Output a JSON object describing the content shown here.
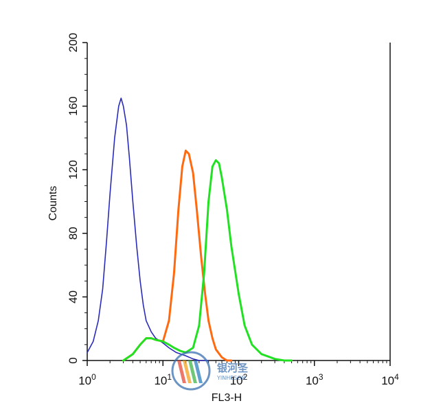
{
  "chart_data": {
    "type": "line",
    "title": "",
    "xlabel": "FL3-H",
    "ylabel": "Counts",
    "xscale": "log",
    "xlim": [
      1,
      10000
    ],
    "ylim": [
      0,
      200
    ],
    "x_ticks": [
      {
        "value": 1,
        "base": "10",
        "exp": "0"
      },
      {
        "value": 10,
        "base": "10",
        "exp": "1"
      },
      {
        "value": 100,
        "base": "10",
        "exp": "2"
      },
      {
        "value": 1000,
        "base": "10",
        "exp": "3"
      },
      {
        "value": 10000,
        "base": "10",
        "exp": "4"
      }
    ],
    "y_ticks": [
      "0",
      "40",
      "80",
      "120",
      "160",
      "200"
    ],
    "grid": false,
    "series": [
      {
        "color": "#2a2ab8",
        "x": [
          1,
          1.2,
          1.4,
          1.6,
          1.8,
          2,
          2.3,
          2.6,
          2.8,
          3,
          3.3,
          3.6,
          4,
          4.5,
          5,
          5.5,
          6,
          7,
          8,
          10,
          12,
          15,
          20,
          25,
          30,
          40
        ],
        "y": [
          5,
          12,
          25,
          45,
          75,
          105,
          140,
          160,
          165,
          160,
          148,
          128,
          100,
          72,
          50,
          35,
          25,
          18,
          14,
          11,
          8,
          5,
          3,
          1,
          0,
          0
        ]
      },
      {
        "color": "#ff6a10",
        "x": [
          3,
          4,
          5,
          6,
          7,
          8,
          10,
          12,
          14,
          16,
          18,
          20,
          22,
          25,
          28,
          32,
          36,
          40,
          45,
          50,
          60,
          70,
          80
        ],
        "y": [
          0,
          4,
          10,
          14,
          14,
          13,
          12,
          25,
          55,
          95,
          122,
          132,
          130,
          118,
          95,
          65,
          42,
          25,
          14,
          7,
          2,
          0,
          0
        ]
      },
      {
        "color": "#22e022",
        "x": [
          3,
          4,
          5,
          6,
          7,
          8,
          10,
          12,
          14,
          17,
          20,
          25,
          30,
          35,
          40,
          45,
          50,
          55,
          60,
          70,
          80,
          100,
          120,
          150,
          200,
          300,
          400,
          500
        ],
        "y": [
          0,
          4,
          10,
          14,
          14,
          13,
          12,
          10,
          8,
          6,
          5,
          8,
          22,
          55,
          100,
          122,
          126,
          124,
          115,
          95,
          72,
          42,
          22,
          10,
          4,
          1,
          0,
          0
        ]
      }
    ]
  },
  "watermark": {
    "text_cn": "银河圣",
    "text_en": "YINHESON"
  }
}
